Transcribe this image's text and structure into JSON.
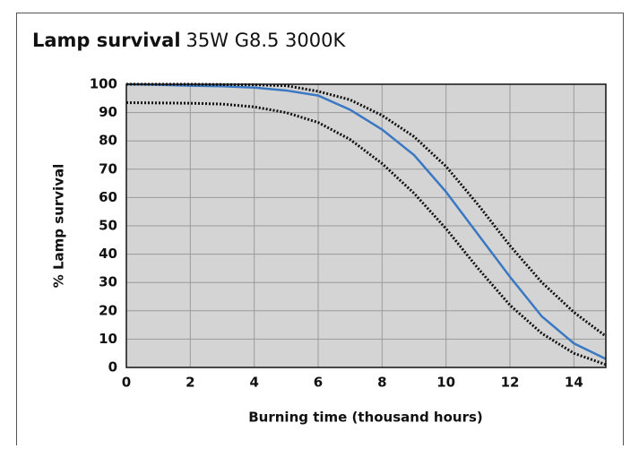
{
  "chart_data": {
    "type": "line",
    "title": "Lamp survival",
    "subtitle": "35W G8.5 3000K",
    "xlabel": "Burning time (thousand hours)",
    "ylabel": "% Lamp survival",
    "x": [
      0,
      1,
      2,
      3,
      4,
      5,
      6,
      7,
      8,
      9,
      10,
      11,
      12,
      13,
      14,
      15
    ],
    "series": [
      {
        "color": "#3a78c3",
        "dashed": false,
        "values": [
          100,
          99.8,
          99.5,
          99.3,
          98.8,
          97.8,
          96,
          91,
          84,
          75,
          62,
          47,
          32,
          18,
          8.5,
          3
        ]
      },
      {
        "color": "#111111",
        "dashed": true,
        "values": [
          100,
          100,
          100,
          99.9,
          99.8,
          99.5,
          97.5,
          94.5,
          89,
          81.5,
          71,
          57.5,
          43,
          30,
          19.5,
          11
        ]
      },
      {
        "color": "#111111",
        "dashed": true,
        "values": [
          93.5,
          93.4,
          93.3,
          93,
          92,
          90,
          86.5,
          80.5,
          72,
          61.5,
          49,
          35,
          22,
          12,
          5,
          1
        ]
      }
    ],
    "xlim": [
      0,
      15
    ],
    "xticks": [
      0,
      2,
      4,
      6,
      8,
      10,
      12,
      14
    ],
    "ylim": [
      0,
      100
    ],
    "yticks": [
      0,
      10,
      20,
      30,
      40,
      50,
      60,
      70,
      80,
      90,
      100
    ],
    "grid": true
  }
}
